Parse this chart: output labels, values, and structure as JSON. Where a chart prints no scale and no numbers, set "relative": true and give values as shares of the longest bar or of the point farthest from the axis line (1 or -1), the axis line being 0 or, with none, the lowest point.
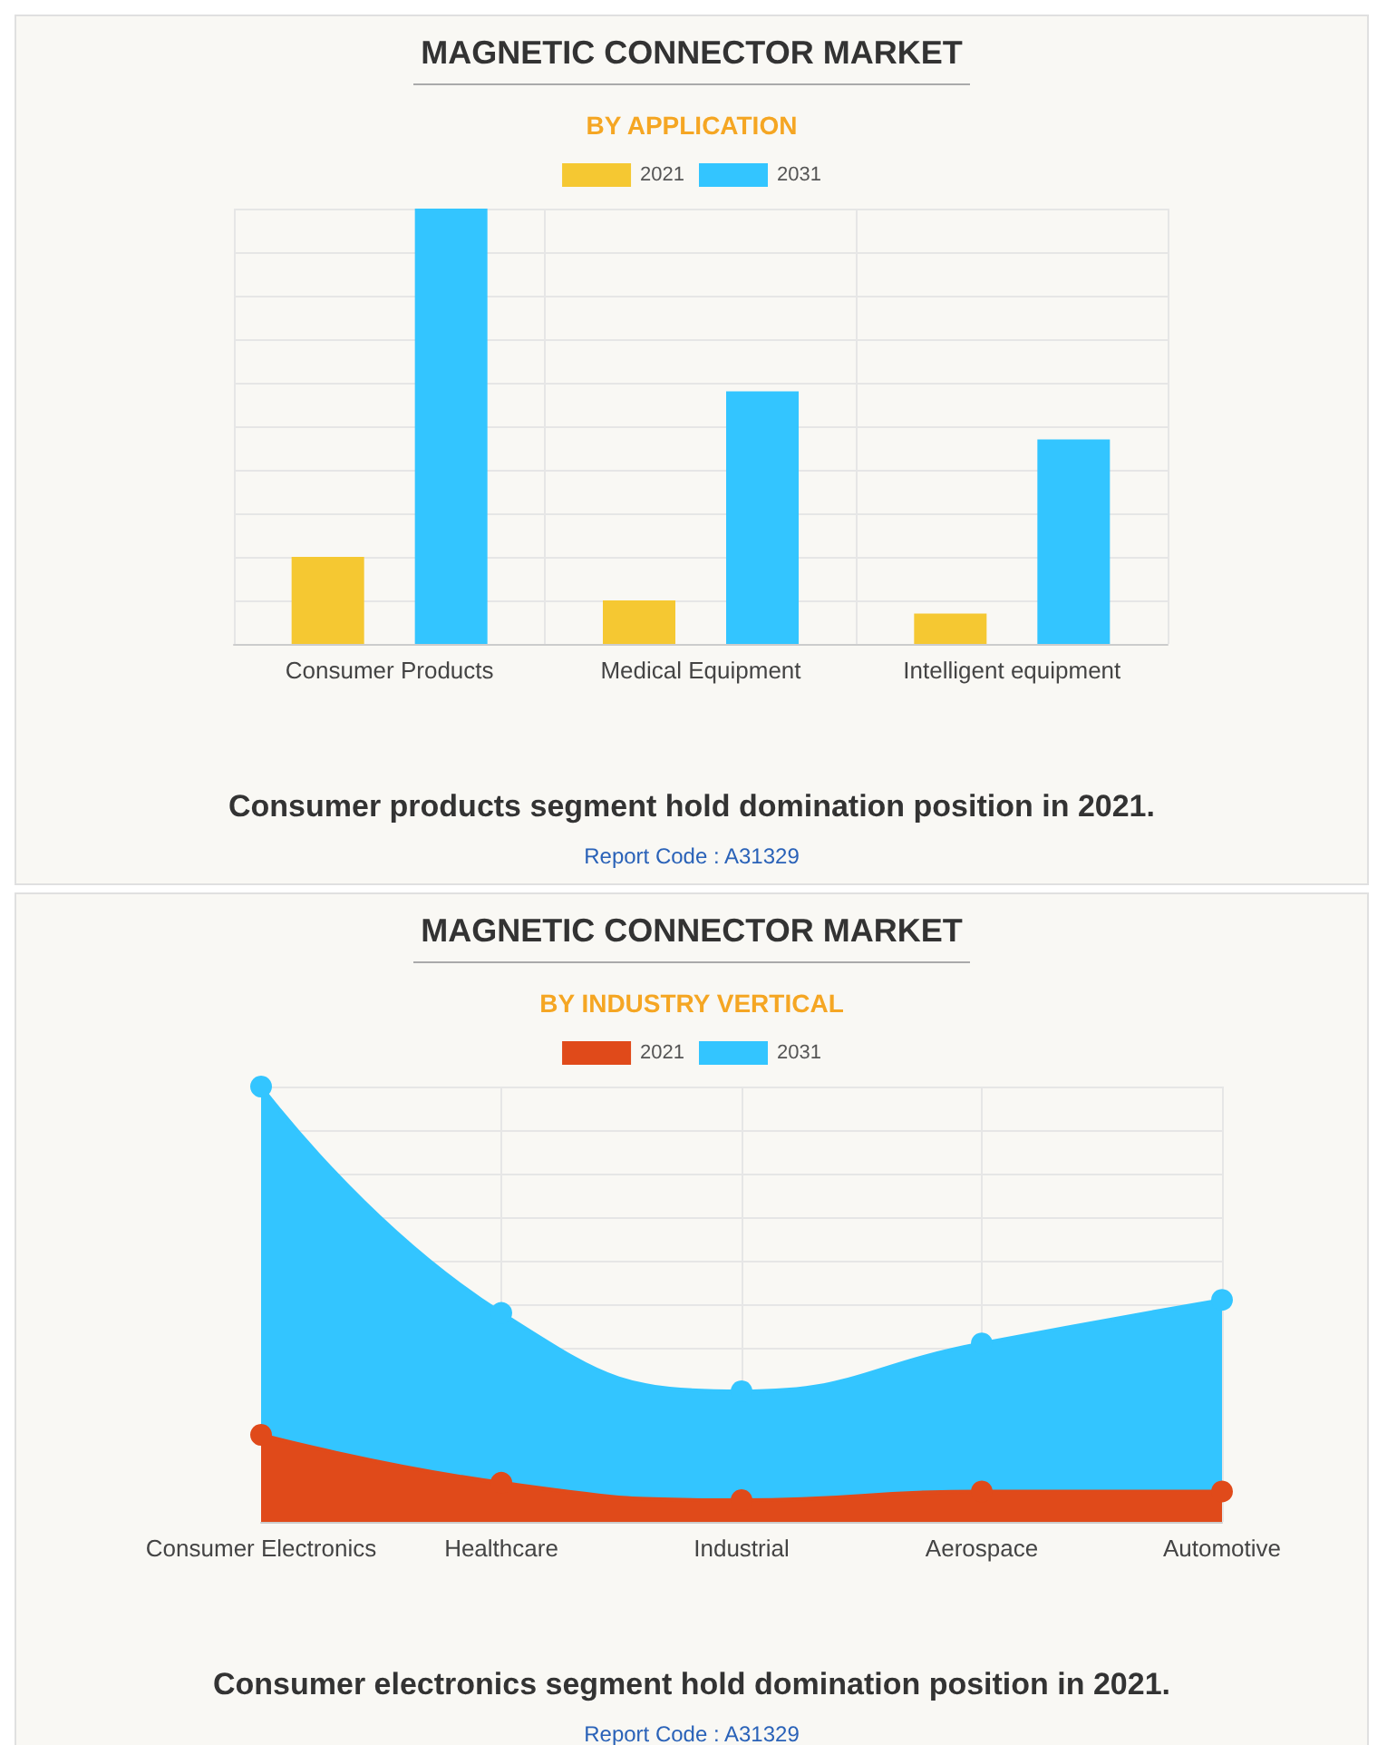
{
  "chart_data": [
    {
      "type": "bar",
      "title": "MAGNETIC CONNECTOR MARKET",
      "subtitle": "BY APPLICATION",
      "relative": true,
      "grid": true,
      "legend": "top",
      "categories": [
        "Consumer Products",
        "Medical Equipment",
        "Intelligent equipment"
      ],
      "series": [
        {
          "name": "2021",
          "color": "#f5c832",
          "values": [
            0.2,
            0.1,
            0.07
          ]
        },
        {
          "name": "2031",
          "color": "#33c5ff",
          "values": [
            1,
            0.58,
            0.47
          ]
        }
      ],
      "annotations": [
        "Consumer products segment hold domination position in 2021.",
        "Report Code : A31329"
      ]
    },
    {
      "type": "area",
      "title": "MAGNETIC CONNECTOR MARKET",
      "subtitle": "BY INDUSTRY VERTICAL",
      "relative": true,
      "grid": true,
      "legend": "top",
      "marker": "circle",
      "categories": [
        "Consumer Electronics",
        "Healthcare",
        "Industrial",
        "Aerospace",
        "Automotive"
      ],
      "series": [
        {
          "name": "2021",
          "color": "#e04a1a",
          "values": [
            0.2,
            0.09,
            0.05,
            0.07,
            0.07
          ]
        },
        {
          "name": "2031",
          "color": "#33c5ff",
          "values": [
            1,
            0.48,
            0.3,
            0.41,
            0.51
          ]
        }
      ],
      "annotations": [
        "Consumer electronics segment hold domination position in 2021.",
        "Report Code : A31329"
      ]
    }
  ]
}
